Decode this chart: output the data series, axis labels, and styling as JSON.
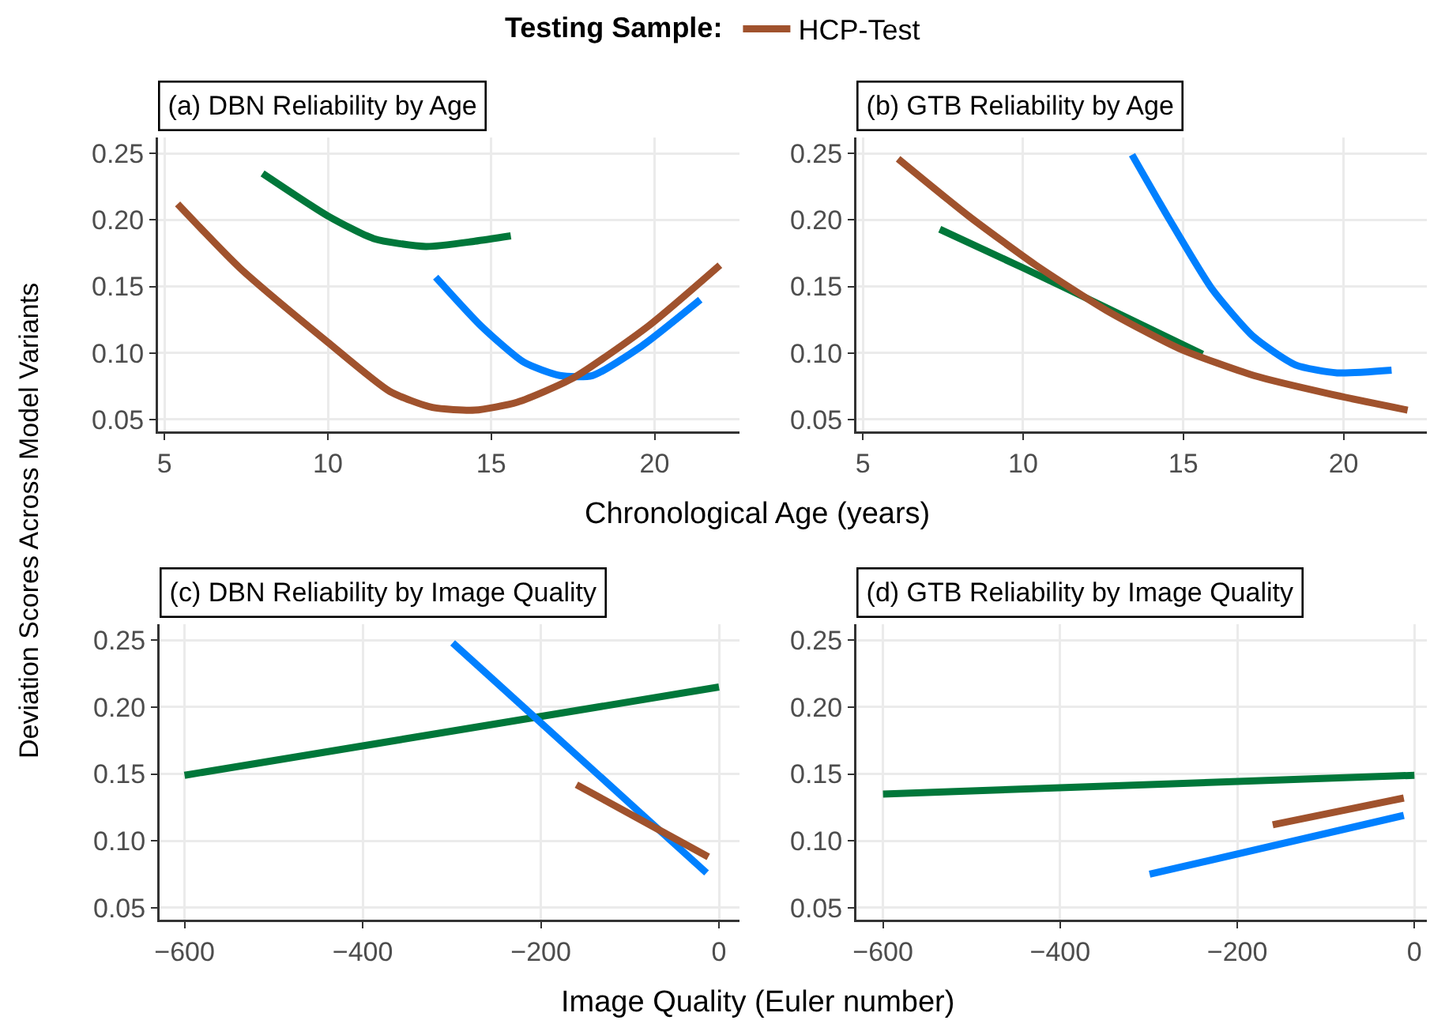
{
  "chart_data": [
    {
      "type": "line",
      "title": "(a) DBN Reliability by Age",
      "legend_title": "Testing Sample:",
      "ylabel": "Deviation Scores Across Model Variants",
      "xlabel": "Chronological Age (years)",
      "legend": "top",
      "grid": true,
      "line_style": "solid",
      "xlim": [
        4.8,
        22.6
      ],
      "xticks": [
        5,
        10,
        15,
        20
      ],
      "ylim": [
        0.041,
        0.262
      ],
      "yticks": [
        {
          "value": 0.05,
          "label": "0.05"
        },
        {
          "value": 0.1,
          "label": "0.10"
        },
        {
          "value": 0.15,
          "label": "0.15"
        },
        {
          "value": 0.2,
          "label": "0.20"
        },
        {
          "value": 0.25,
          "label": "0.25"
        }
      ],
      "series": [
        {
          "color": "#00773a",
          "x": [
            8.0,
            10.0,
            11.4,
            13.0,
            14.5,
            15.6
          ],
          "values": [
            0.235,
            0.203,
            0.186,
            0.18,
            0.184,
            0.188
          ]
        },
        {
          "color": "#0080ff",
          "x": [
            13.3,
            14.7,
            16.0,
            17.1,
            18.1,
            19.6,
            21.4
          ],
          "values": [
            0.157,
            0.12,
            0.093,
            0.083,
            0.083,
            0.105,
            0.14
          ]
        },
        {
          "name": "HCP-Test",
          "color": "#a0522d",
          "x": [
            5.4,
            7.3,
            10.0,
            11.9,
            13.2,
            14.5,
            15.8,
            17.5,
            19.8,
            22.0
          ],
          "values": [
            0.212,
            0.164,
            0.108,
            0.071,
            0.059,
            0.057,
            0.063,
            0.081,
            0.12,
            0.166
          ]
        }
      ]
    },
    {
      "type": "line",
      "title": "(b) GTB Reliability by Age",
      "grid": true,
      "line_style": "solid",
      "xlim": [
        4.8,
        22.6
      ],
      "xticks": [
        5,
        10,
        15,
        20
      ],
      "ylim": [
        0.041,
        0.262
      ],
      "yticks": [
        {
          "value": 0.05,
          "label": "0.05"
        },
        {
          "value": 0.1,
          "label": "0.10"
        },
        {
          "value": 0.15,
          "label": "0.15"
        },
        {
          "value": 0.2,
          "label": "0.20"
        },
        {
          "value": 0.25,
          "label": "0.25"
        }
      ],
      "series": [
        {
          "color": "#00773a",
          "x": [
            7.4,
            10.0,
            12.6,
            15.6
          ],
          "values": [
            0.193,
            0.164,
            0.134,
            0.099
          ]
        },
        {
          "color": "#0080ff",
          "x": [
            13.4,
            14.6,
            15.9,
            17.2,
            18.5,
            19.8,
            21.5
          ],
          "values": [
            0.249,
            0.199,
            0.148,
            0.112,
            0.091,
            0.085,
            0.087
          ]
        },
        {
          "color": "#a0522d",
          "x": [
            6.1,
            8.3,
            10.4,
            12.6,
            14.9,
            17.2,
            19.6,
            22.0
          ],
          "values": [
            0.246,
            0.203,
            0.166,
            0.132,
            0.103,
            0.083,
            0.069,
            0.057
          ]
        }
      ]
    },
    {
      "type": "line",
      "title": "(c) DBN Reliability by Image Quality",
      "xlabel": "Image Quality (Euler number)",
      "grid": true,
      "line_style": "solid",
      "xlim": [
        -628,
        23
      ],
      "xticks": [
        {
          "value": -600,
          "label": "−600"
        },
        {
          "value": -400,
          "label": "−400"
        },
        {
          "value": -200,
          "label": "−200"
        },
        0
      ],
      "ylim": [
        0.041,
        0.262
      ],
      "yticks": [
        {
          "value": 0.05,
          "label": "0.05"
        },
        {
          "value": 0.1,
          "label": "0.10"
        },
        {
          "value": 0.15,
          "label": "0.15"
        },
        {
          "value": 0.2,
          "label": "0.20"
        },
        {
          "value": 0.25,
          "label": "0.25"
        }
      ],
      "series": [
        {
          "color": "#00773a",
          "x": [
            -600,
            0
          ],
          "values": [
            0.149,
            0.215
          ]
        },
        {
          "color": "#0080ff",
          "x": [
            -299,
            -14
          ],
          "values": [
            0.248,
            0.076
          ]
        },
        {
          "color": "#a0522d",
          "x": [
            -160,
            -12
          ],
          "values": [
            0.142,
            0.088
          ]
        }
      ]
    },
    {
      "type": "line",
      "title": "(d) GTB Reliability by Image Quality",
      "grid": true,
      "line_style": "solid",
      "xlim": [
        -630,
        14
      ],
      "xticks": [
        {
          "value": -600,
          "label": "−600"
        },
        {
          "value": -400,
          "label": "−400"
        },
        {
          "value": -200,
          "label": "−200"
        },
        0
      ],
      "ylim": [
        0.041,
        0.262
      ],
      "yticks": [
        {
          "value": 0.05,
          "label": "0.05"
        },
        {
          "value": 0.1,
          "label": "0.10"
        },
        {
          "value": 0.15,
          "label": "0.15"
        },
        {
          "value": 0.2,
          "label": "0.20"
        },
        {
          "value": 0.25,
          "label": "0.25"
        }
      ],
      "series": [
        {
          "color": "#00773a",
          "x": [
            -600,
            0
          ],
          "values": [
            0.135,
            0.149
          ]
        },
        {
          "color": "#0080ff",
          "x": [
            -299,
            -12
          ],
          "values": [
            0.075,
            0.119
          ]
        },
        {
          "color": "#a0522d",
          "x": [
            -160,
            -12
          ],
          "values": [
            0.112,
            0.132
          ]
        }
      ]
    }
  ]
}
